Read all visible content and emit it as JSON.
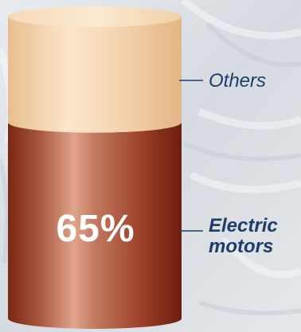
{
  "chart_data": {
    "type": "stacked-bar",
    "series": [
      {
        "name": "Electric motors",
        "value": 65,
        "color": "#9a3e26"
      },
      {
        "name": "Others",
        "value": 35,
        "color": "#f4d5b1"
      }
    ],
    "data_label": "65%",
    "labels": {
      "others": "Others",
      "electric_line1": "Electric",
      "electric_line2": "motors"
    }
  }
}
